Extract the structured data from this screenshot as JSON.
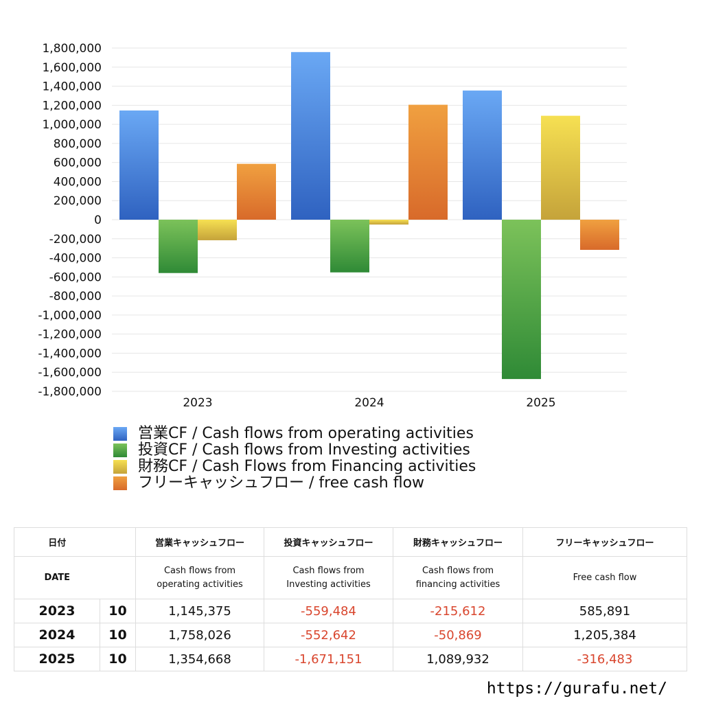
{
  "chart_data": {
    "type": "bar",
    "categories": [
      "2023",
      "2024",
      "2025"
    ],
    "series": [
      {
        "name": "営業CF / Cash flows from operating activities",
        "values": [
          1145375,
          1758026,
          1354668
        ],
        "color_top": "#6aa8f4",
        "color_bottom": "#2f62c0"
      },
      {
        "name": "投資CF / Cash flows from Investing activities",
        "values": [
          -559484,
          -552642,
          -1671151
        ],
        "color_top": "#7cc25a",
        "color_bottom": "#2f8a36"
      },
      {
        "name": "財務CF / Cash Flows from Financing activities",
        "values": [
          -215612,
          -50869,
          1089932
        ],
        "color_top": "#f6e052",
        "color_bottom": "#c5a33a"
      },
      {
        "name": "フリーキャッシュフロー / free cash flow",
        "values": [
          585891,
          1205384,
          -316483
        ],
        "color_top": "#f0a040",
        "color_bottom": "#d86a2a"
      }
    ],
    "ylim": [
      -1800000,
      1800000
    ],
    "ytick_step": 200000,
    "yticks": [
      "1,800,000",
      "1,600,000",
      "1,400,000",
      "1,200,000",
      "1,000,000",
      "800,000",
      "600,000",
      "400,000",
      "200,000",
      "0",
      "-200,000",
      "-400,000",
      "-600,000",
      "-800,000",
      "-1,000,000",
      "-1,200,000",
      "-1,400,000",
      "-1,600,000",
      "-1,800,000"
    ],
    "grid": true,
    "legend_position": "bottom-left"
  },
  "table": {
    "headers_jp": [
      "日付",
      "営業キャッシュフロー",
      "投資キャッシュフロー",
      "財務キャッシュフロー",
      "フリーキャッシュフロー"
    ],
    "headers_en": {
      "date": "DATE",
      "operating_1": "Cash flows from",
      "operating_2": "operating activities",
      "investing_1": "Cash flows from",
      "investing_2": "Investing activities",
      "financing_1": "Cash flows from",
      "financing_2": "financing activities",
      "free": "Free cash flow"
    },
    "rows": [
      {
        "year": "2023",
        "month": "10",
        "operating": "1,145,375",
        "investing": "-559,484",
        "financing": "-215,612",
        "free": "585,891"
      },
      {
        "year": "2024",
        "month": "10",
        "operating": "1,758,026",
        "investing": "-552,642",
        "financing": "-50,869",
        "free": "1,205,384"
      },
      {
        "year": "2025",
        "month": "10",
        "operating": "1,354,668",
        "investing": "-1,671,151",
        "financing": "1,089,932",
        "free": "-316,483"
      }
    ],
    "negative_color": "#d9462e"
  },
  "footer": {
    "url": "https://gurafu.net/"
  }
}
